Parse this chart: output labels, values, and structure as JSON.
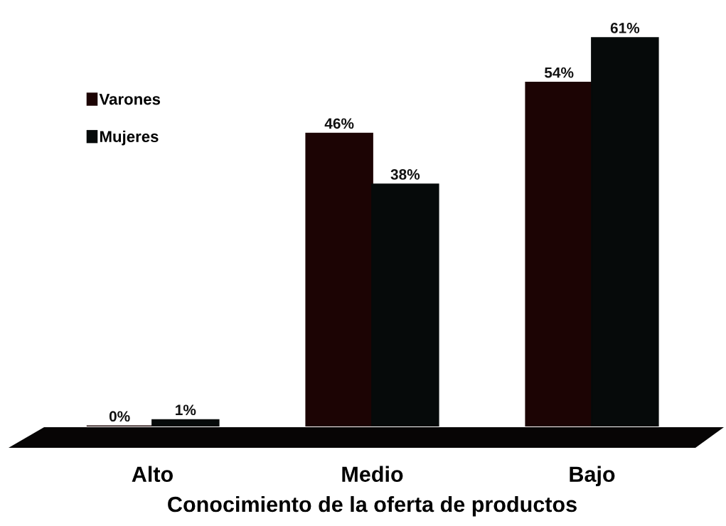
{
  "chart_data": {
    "type": "bar",
    "xlabel": "Conocimiento de la oferta de productos",
    "categories": [
      "Alto",
      "Medio",
      "Bajo"
    ],
    "series": [
      {
        "name": "Varones",
        "color": "#1c0404",
        "values": [
          0,
          46,
          54
        ],
        "value_labels": [
          "0%",
          "46%",
          "54%"
        ]
      },
      {
        "name": "Mujeres",
        "color": "#060a0a",
        "values": [
          1,
          38,
          61
        ],
        "value_labels": [
          "1%",
          "38%",
          "61%"
        ]
      }
    ],
    "legend": "top left",
    "tick_labels": "x"
  }
}
